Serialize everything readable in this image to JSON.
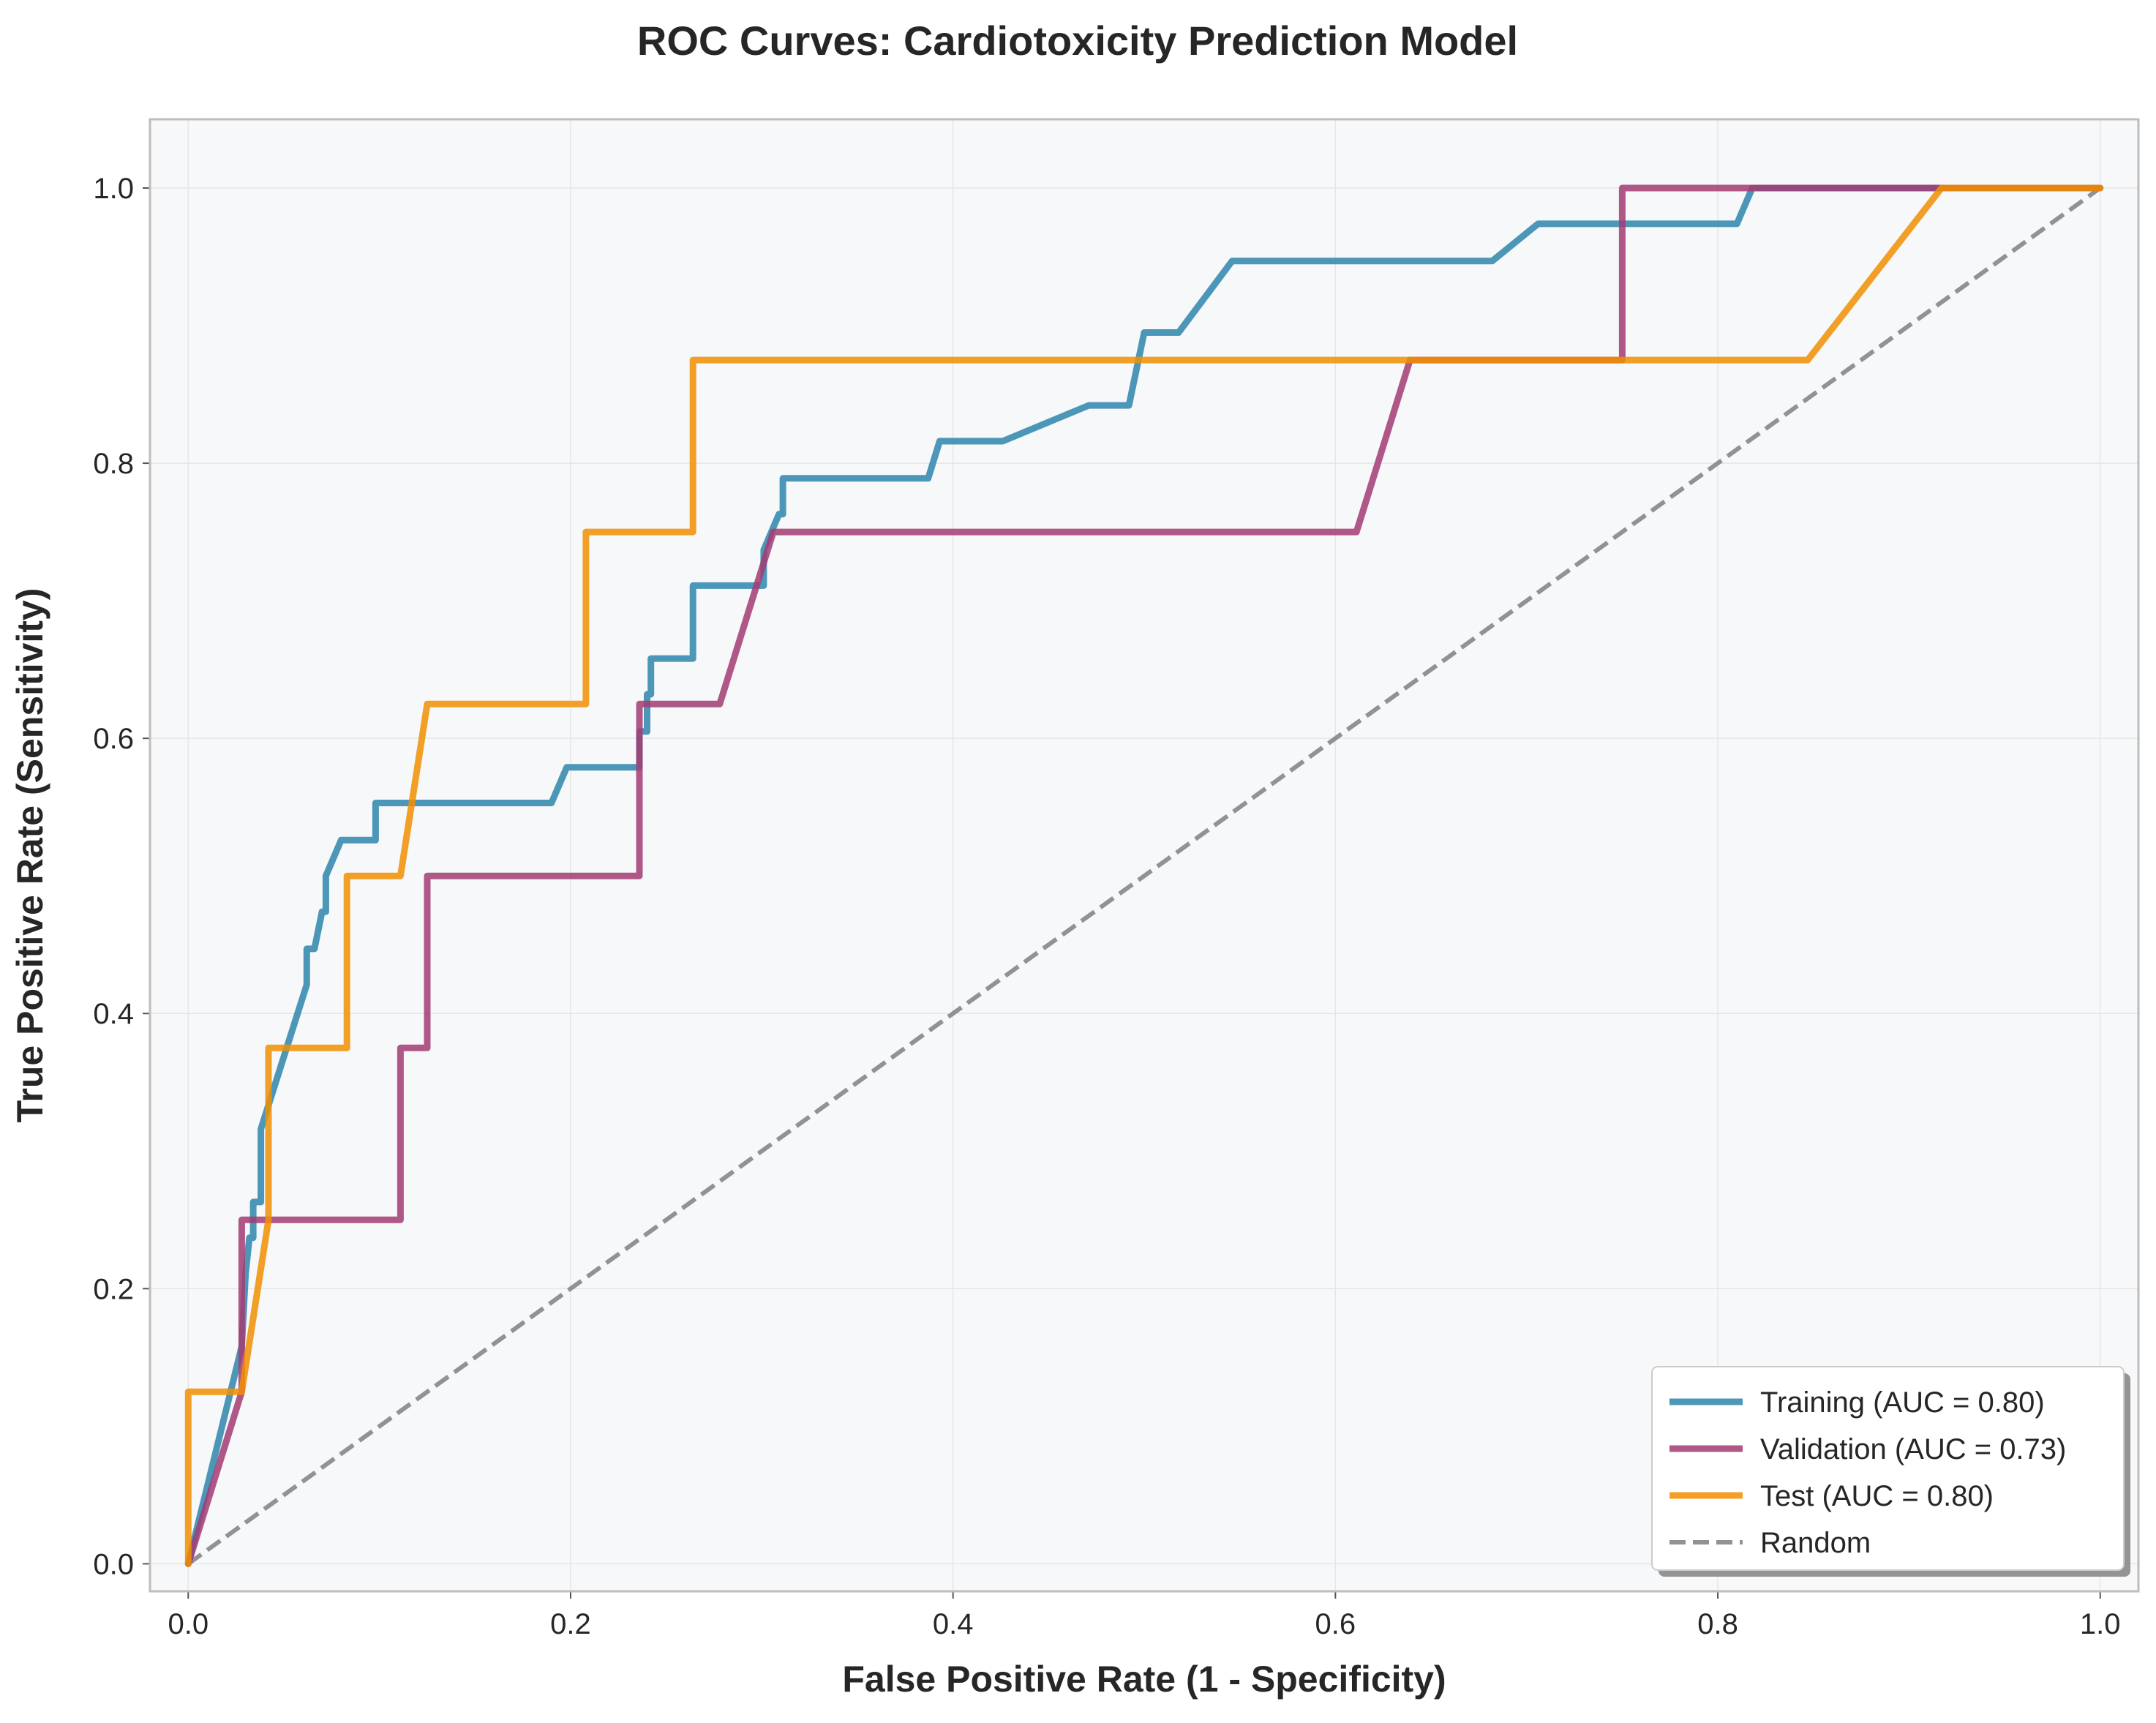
{
  "chart_data": {
    "type": "line",
    "title": "ROC Curves: Cardiotoxicity Prediction Model",
    "xlabel": "False Positive Rate (1 - Specificity)",
    "ylabel": "True Positive Rate (Sensitivity)",
    "xlim": [
      -0.02,
      1.02
    ],
    "ylim": [
      -0.02,
      1.05
    ],
    "xticks": [
      "0.0",
      "0.2",
      "0.4",
      "0.6",
      "0.8",
      "1.0"
    ],
    "yticks": [
      "0.0",
      "0.2",
      "0.4",
      "0.6",
      "0.8",
      "1.0"
    ],
    "grid": true,
    "legend_position": "lower-right",
    "series": [
      {
        "name": "Training (AUC = 0.80)",
        "color": "#2E86AB",
        "x": [
          0.0,
          0.028,
          0.03,
          0.032,
          0.032,
          0.034,
          0.034,
          0.036,
          0.036,
          0.038,
          0.038,
          0.062,
          0.062,
          0.064,
          0.064,
          0.066,
          0.07,
          0.072,
          0.072,
          0.08,
          0.094,
          0.098,
          0.098,
          0.19,
          0.198,
          0.236,
          0.236,
          0.24,
          0.24,
          0.242,
          0.242,
          0.264,
          0.264,
          0.301,
          0.301,
          0.309,
          0.311,
          0.311,
          0.387,
          0.393,
          0.426,
          0.471,
          0.492,
          0.5,
          0.518,
          0.546,
          0.57,
          0.682,
          0.706,
          0.81,
          0.818,
          0.858,
          0.92,
          1.0
        ],
        "y": [
          0.0,
          0.158,
          0.211,
          0.237,
          0.237,
          0.237,
          0.263,
          0.263,
          0.263,
          0.263,
          0.316,
          0.421,
          0.447,
          0.447,
          0.447,
          0.447,
          0.474,
          0.474,
          0.5,
          0.526,
          0.526,
          0.526,
          0.553,
          0.553,
          0.579,
          0.579,
          0.605,
          0.605,
          0.632,
          0.632,
          0.658,
          0.658,
          0.711,
          0.711,
          0.737,
          0.763,
          0.763,
          0.789,
          0.789,
          0.816,
          0.816,
          0.842,
          0.842,
          0.895,
          0.895,
          0.947,
          0.947,
          0.947,
          0.974,
          0.974,
          1.0,
          1.0,
          1.0,
          1.0
        ]
      },
      {
        "name": "Validation (AUC = 0.73)",
        "color": "#A23B72",
        "x": [
          0.0,
          0.028,
          0.028,
          0.111,
          0.111,
          0.125,
          0.125,
          0.236,
          0.236,
          0.278,
          0.306,
          0.611,
          0.639,
          0.75,
          0.75,
          0.82,
          1.0
        ],
        "y": [
          0.0,
          0.125,
          0.25,
          0.25,
          0.375,
          0.375,
          0.5,
          0.5,
          0.625,
          0.625,
          0.75,
          0.75,
          0.875,
          0.875,
          1.0,
          1.0,
          1.0
        ]
      },
      {
        "name": "Test (AUC = 0.80)",
        "color": "#F18F01",
        "x": [
          0.0,
          0.0,
          0.028,
          0.042,
          0.042,
          0.083,
          0.083,
          0.111,
          0.125,
          0.208,
          0.208,
          0.264,
          0.264,
          0.847,
          0.917,
          1.0
        ],
        "y": [
          0.0,
          0.125,
          0.125,
          0.25,
          0.375,
          0.375,
          0.5,
          0.5,
          0.625,
          0.625,
          0.75,
          0.75,
          0.875,
          0.875,
          1.0,
          1.0
        ]
      }
    ],
    "reference_line": {
      "name": "Random",
      "color": "#808080",
      "x": [
        0.0,
        1.0
      ],
      "y": [
        0.0,
        1.0
      ],
      "style": "dashed"
    }
  }
}
